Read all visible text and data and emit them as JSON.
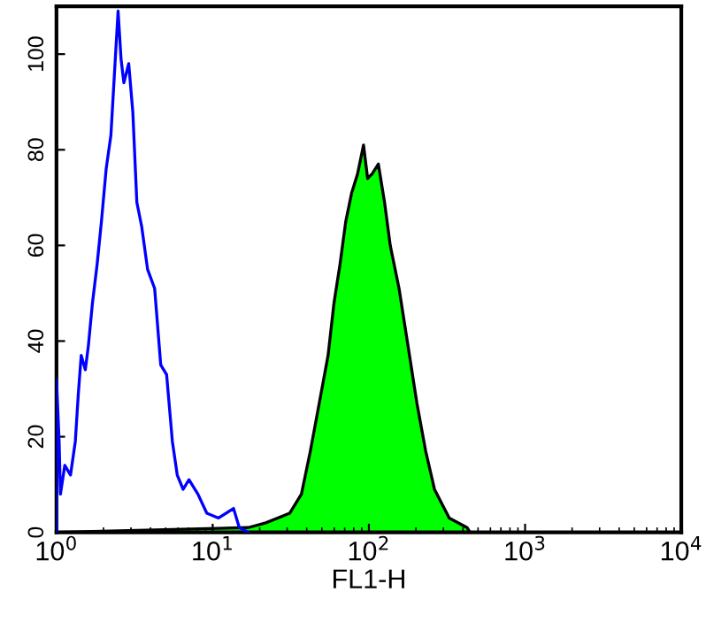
{
  "chart_data": {
    "type": "line",
    "xlabel": "FL1-H",
    "log": "x",
    "xlim": [
      1,
      10000
    ],
    "ylim": [
      0,
      110
    ],
    "xticks": [
      {
        "value": 1,
        "label": "10$^{0}$"
      },
      {
        "value": 10,
        "label": "10$^{1}$"
      },
      {
        "value": 100,
        "label": "10$^{2}$"
      },
      {
        "value": 1000,
        "label": "10$^{3}$"
      },
      {
        "value": 10000,
        "label": "10$^{4}$"
      }
    ],
    "yticks": [
      0,
      20,
      40,
      60,
      80,
      100
    ],
    "grid": false,
    "legend": false,
    "series": [
      {
        "type": "area",
        "color": "#00ff00",
        "x": [
          1.0,
          16.9,
          21.9,
          31.1,
          37.0,
          42.2,
          48.1,
          54.8,
          59.8,
          65.3,
          71.1,
          77.6,
          84.7,
          92.4,
          98.2,
          105,
          115,
          126,
          137,
          156,
          178,
          203,
          231,
          263,
          327,
          425,
          444
        ],
        "values": [
          0,
          1,
          2,
          4,
          8,
          17,
          27,
          37,
          48,
          56,
          65,
          71,
          75,
          81,
          74,
          75,
          77,
          69,
          60,
          51,
          39,
          27,
          17,
          9,
          3,
          1,
          0
        ]
      },
      {
        "color": "#0000ff",
        "x": [
          1.0,
          1.0,
          1.04,
          1.06,
          1.13,
          1.23,
          1.32,
          1.38,
          1.44,
          1.53,
          1.6,
          1.7,
          1.82,
          1.94,
          2.08,
          2.23,
          2.37,
          2.48,
          2.59,
          2.7,
          2.9,
          3.08,
          3.27,
          3.51,
          3.83,
          4.25,
          4.65,
          5.07,
          5.52,
          5.93,
          6.47,
          7.05,
          8.04,
          9.17,
          10.9,
          13.6,
          14.8,
          16.9
        ],
        "values": [
          0,
          32,
          19,
          8,
          14,
          12,
          19,
          29,
          37,
          34,
          39,
          48,
          56,
          65,
          76,
          83,
          98,
          109,
          99,
          94,
          98,
          88,
          69,
          64,
          55,
          51,
          35,
          33,
          19,
          12,
          9,
          11,
          8,
          4,
          3,
          5,
          1,
          0
        ]
      }
    ]
  }
}
